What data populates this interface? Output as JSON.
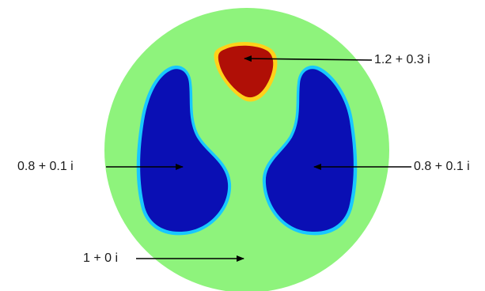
{
  "colors": {
    "background": "#8ef37c",
    "inclusion_high": "#b00f06",
    "inclusion_high_edge": "#ffd21a",
    "inclusion_low": "#0a0fb4",
    "inclusion_low_edge": "#18c8ff",
    "arrow": "#000000"
  },
  "regions": {
    "top_inclusion": {
      "value_label": "1.2 + 0.3 i"
    },
    "left_inclusion": {
      "value_label": "0.8 + 0.1 i"
    },
    "right_inclusion": {
      "value_label": "0.8 + 0.1 i"
    },
    "background_domain": {
      "value_label": "1 + 0 i"
    }
  }
}
